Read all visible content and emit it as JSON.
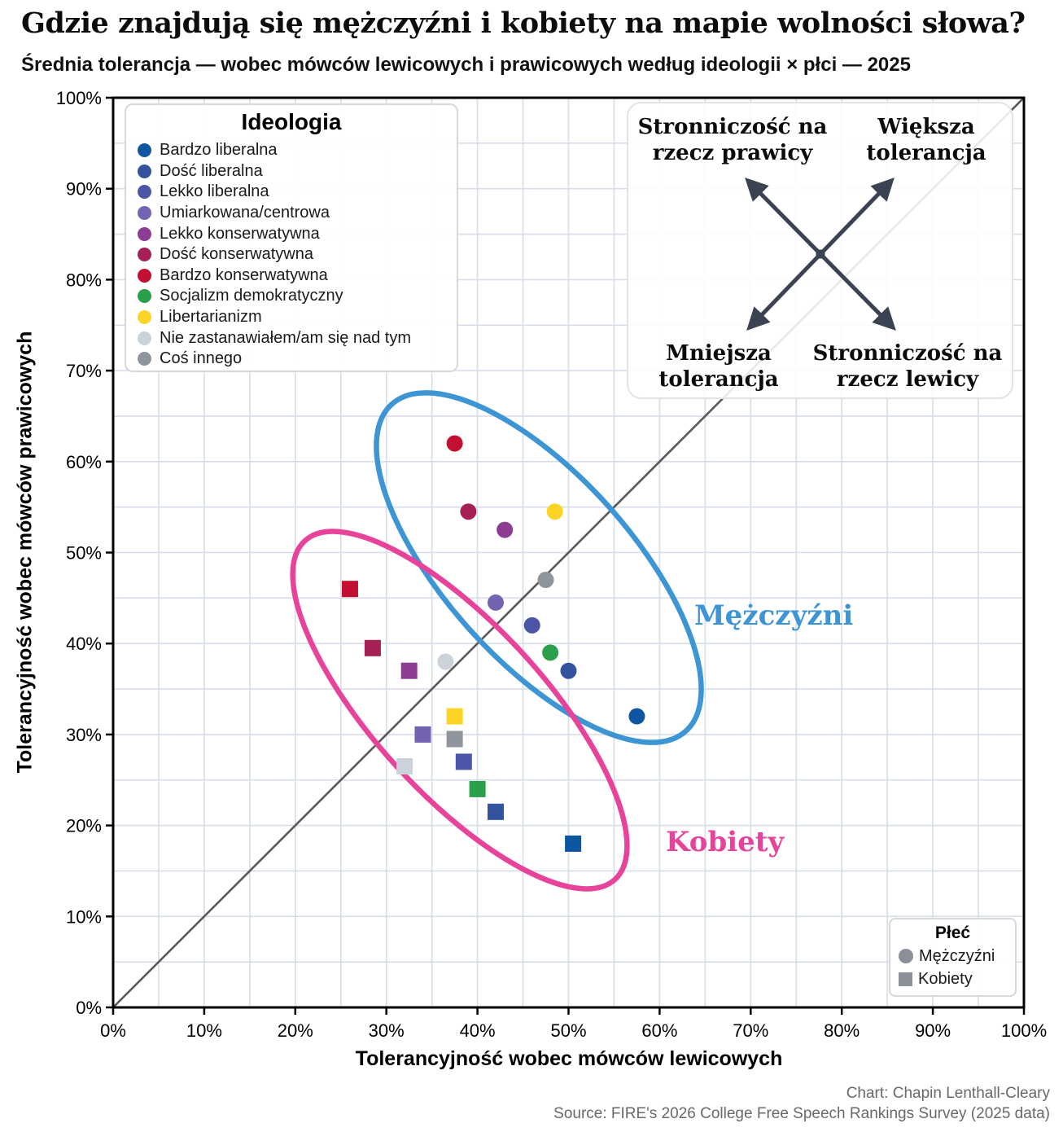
{
  "header": {
    "title": "Gdzie znajdują się mężczyźni i kobiety na mapie wolności słowa?",
    "subtitle": "Średnia tolerancja — wobec mówców lewicowych i prawicowych według ideologii × płci — 2025"
  },
  "source": {
    "line1": "Chart: Chapin Lenthall-Cleary",
    "line2": "Source: FIRE's 2026 College Free Speech Rankings Survey (2025 data)"
  },
  "gender_legend": {
    "title": "Płeć",
    "marker_color": "#8a8f98",
    "items": [
      {
        "label": "Mężczyźni",
        "marker": "circle"
      },
      {
        "label": "Kobiety",
        "marker": "square"
      }
    ]
  },
  "chart_data": {
    "type": "scatter",
    "title": "Gdzie znajdują się mężczyźni i kobiety na mapie wolności słowa?",
    "xlabel": "Tolerancyjność wobec mówców lewicowych",
    "ylabel": "Tolerancyjność wobec mówców prawicowych",
    "xlim": [
      0,
      100
    ],
    "ylim": [
      0,
      100
    ],
    "tick_step": 10,
    "grid_step": 5,
    "tick_suffix": "%",
    "grid": true,
    "identity_line": true,
    "legend_title": "Ideologia",
    "colors": {
      "grid": "#d7dde9",
      "identity_line": "#595959",
      "axis": "#000000",
      "arrow": "#3b4352",
      "men_cluster": "#3e95d4",
      "women_cluster": "#e8439b"
    },
    "ideologies": [
      {
        "id": "bardzo-liberalna",
        "label": "Bardzo liberalna",
        "color": "#0f56a2"
      },
      {
        "id": "dosc-liberalna",
        "label": "Dość liberalna",
        "color": "#33539e"
      },
      {
        "id": "lekko-liberalna",
        "label": "Lekko liberalna",
        "color": "#4d55a6"
      },
      {
        "id": "umiarkowana-centrowa",
        "label": "Umiarkowana/centrowa",
        "color": "#7463b2"
      },
      {
        "id": "lekko-konserwatywna",
        "label": "Lekko konserwatywna",
        "color": "#8c3c92"
      },
      {
        "id": "dosc-konserwatywna",
        "label": "Dość konserwatywna",
        "color": "#a52155"
      },
      {
        "id": "bardzo-konserwatywna",
        "label": "Bardzo konserwatywna",
        "color": "#c30f31"
      },
      {
        "id": "socjalizm-demokratyczny",
        "label": "Socjalizm demokratyczny",
        "color": "#2ba04a"
      },
      {
        "id": "libertarianizm",
        "label": "Libertarianizm",
        "color": "#fbd426"
      },
      {
        "id": "nie-zastanawialem",
        "label": "Nie zastanawiałem/am się nad tym",
        "color": "#ccd2d9"
      },
      {
        "id": "cos-innego",
        "label": "Coś innego",
        "color": "#8f949d"
      }
    ],
    "series": [
      {
        "key": "men",
        "name": "Mężczyźni",
        "marker": "circle",
        "points": [
          {
            "ideology": "bardzo-liberalna",
            "x": 57.5,
            "y": 32
          },
          {
            "ideology": "dosc-liberalna",
            "x": 50,
            "y": 37
          },
          {
            "ideology": "lekko-liberalna",
            "x": 46,
            "y": 42
          },
          {
            "ideology": "umiarkowana-centrowa",
            "x": 42,
            "y": 44.5
          },
          {
            "ideology": "lekko-konserwatywna",
            "x": 43,
            "y": 52.5
          },
          {
            "ideology": "dosc-konserwatywna",
            "x": 39,
            "y": 54.5
          },
          {
            "ideology": "bardzo-konserwatywna",
            "x": 37.5,
            "y": 62
          },
          {
            "ideology": "socjalizm-demokratyczny",
            "x": 48,
            "y": 39
          },
          {
            "ideology": "libertarianizm",
            "x": 48.5,
            "y": 54.5
          },
          {
            "ideology": "nie-zastanawialem",
            "x": 36.5,
            "y": 38
          },
          {
            "ideology": "cos-innego",
            "x": 47.5,
            "y": 47
          }
        ]
      },
      {
        "key": "women",
        "name": "Kobiety",
        "marker": "square",
        "points": [
          {
            "ideology": "bardzo-liberalna",
            "x": 50.5,
            "y": 18
          },
          {
            "ideology": "dosc-liberalna",
            "x": 42,
            "y": 21.5
          },
          {
            "ideology": "lekko-liberalna",
            "x": 38.5,
            "y": 27
          },
          {
            "ideology": "umiarkowana-centrowa",
            "x": 34,
            "y": 30
          },
          {
            "ideology": "lekko-konserwatywna",
            "x": 32.5,
            "y": 37
          },
          {
            "ideology": "dosc-konserwatywna",
            "x": 28.5,
            "y": 39.5
          },
          {
            "ideology": "bardzo-konserwatywna",
            "x": 26,
            "y": 46
          },
          {
            "ideology": "socjalizm-demokratyczny",
            "x": 40,
            "y": 24
          },
          {
            "ideology": "libertarianizm",
            "x": 37.5,
            "y": 32
          },
          {
            "ideology": "nie-zastanawialem",
            "x": 32,
            "y": 26.5
          },
          {
            "ideology": "cos-innego",
            "x": 37.5,
            "y": 29.5
          }
        ]
      }
    ],
    "clusters": [
      {
        "key": "men",
        "label": "Mężczyźni",
        "color": "#3e95d4"
      },
      {
        "key": "women",
        "label": "Kobiety",
        "color": "#e8439b"
      }
    ],
    "annotation": {
      "top_left": "Stronniczość na rzecz prawicy",
      "top_right": "Większa tolerancja",
      "bottom_left": "Mniejsza tolerancja",
      "bottom_right": "Stronniczość na rzecz lewicy"
    }
  }
}
